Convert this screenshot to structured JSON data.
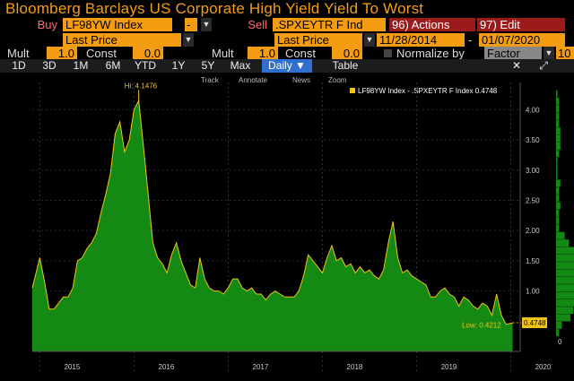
{
  "title": "Bloomberg Barclays US Corporate High Yield Yield To Worst",
  "row1": {
    "buy_label": "Buy",
    "buy_ticker": "LF98YW Index",
    "dash": "-",
    "sell_label": "Sell",
    "sell_ticker": ".SPXEYTR F Ind",
    "actions": "96) Actions",
    "edit": "97) Edit"
  },
  "row2": {
    "left_price": "Last Price",
    "right_price": "Last Price",
    "date_from": "11/28/2014",
    "date_sep": "-",
    "date_to": "01/07/2020"
  },
  "row3": {
    "mult_label": "Mult",
    "mult_value": "1.0",
    "const_label": "Const",
    "const_value": "0.0",
    "mult2_label": "Mult",
    "mult2_value": "1.0",
    "const2_label": "Const",
    "const2_value": "0.0",
    "normalize_label": "Normalize by",
    "factor_label": "Factor",
    "factor_value": "10"
  },
  "tabs": [
    "1D",
    "3D",
    "1M",
    "6M",
    "YTD",
    "1Y",
    "5Y",
    "Max",
    "Daily ▼",
    "Table"
  ],
  "toolbar": {
    "track": "Track",
    "annotate": "Annotate",
    "news": "News",
    "zoom": "Zoom"
  },
  "legend": "LF98YW Index - .SPXEYTR F Index 0.4748",
  "annotations": {
    "hi": "Hi: 4.1476",
    "low": "Low: 0.4212",
    "last": "0.4748"
  },
  "colors": {
    "area": "#148a14",
    "line": "#f0c419",
    "accent": "#f39c12"
  },
  "chart_data": {
    "type": "area",
    "series": [
      {
        "name": "LF98YW Index - .SPXEYTR F Index",
        "x": [
          2014.92,
          2015.0,
          2015.05,
          2015.1,
          2015.15,
          2015.2,
          2015.25,
          2015.3,
          2015.35,
          2015.4,
          2015.45,
          2015.5,
          2015.55,
          2015.6,
          2015.65,
          2015.7,
          2015.75,
          2015.8,
          2015.85,
          2015.9,
          2015.95,
          2016.0,
          2016.05,
          2016.1,
          2016.15,
          2016.2,
          2016.25,
          2016.3,
          2016.35,
          2016.4,
          2016.45,
          2016.5,
          2016.55,
          2016.6,
          2016.65,
          2016.7,
          2016.75,
          2016.8,
          2016.85,
          2016.9,
          2016.95,
          2017.0,
          2017.05,
          2017.1,
          2017.15,
          2017.2,
          2017.25,
          2017.3,
          2017.35,
          2017.4,
          2017.45,
          2017.5,
          2017.55,
          2017.6,
          2017.65,
          2017.7,
          2017.75,
          2017.8,
          2017.85,
          2017.9,
          2017.95,
          2018.0,
          2018.05,
          2018.1,
          2018.15,
          2018.2,
          2018.25,
          2018.3,
          2018.35,
          2018.4,
          2018.45,
          2018.5,
          2018.55,
          2018.6,
          2018.65,
          2018.7,
          2018.75,
          2018.8,
          2018.85,
          2018.9,
          2018.95,
          2019.0,
          2019.05,
          2019.1,
          2019.15,
          2019.2,
          2019.25,
          2019.3,
          2019.35,
          2019.4,
          2019.45,
          2019.5,
          2019.55,
          2019.6,
          2019.65,
          2019.7,
          2019.75,
          2019.8,
          2019.85,
          2019.9,
          2019.95,
          2020.02
        ],
        "y": [
          1.05,
          1.55,
          1.15,
          0.7,
          0.7,
          0.8,
          0.9,
          0.9,
          1.05,
          1.5,
          1.55,
          1.7,
          1.8,
          1.95,
          2.3,
          2.6,
          2.95,
          3.6,
          3.8,
          3.3,
          3.5,
          4.0,
          4.15,
          3.4,
          2.6,
          1.8,
          1.55,
          1.45,
          1.3,
          1.6,
          1.8,
          1.5,
          1.3,
          1.1,
          1.05,
          1.55,
          1.2,
          1.05,
          1.0,
          1.0,
          0.95,
          1.05,
          1.2,
          1.2,
          1.05,
          1.0,
          1.05,
          0.95,
          0.95,
          0.85,
          0.95,
          1.0,
          0.95,
          0.9,
          0.9,
          0.9,
          1.0,
          1.25,
          1.6,
          1.5,
          1.4,
          1.3,
          1.55,
          1.75,
          1.5,
          1.55,
          1.4,
          1.45,
          1.3,
          1.4,
          1.3,
          1.35,
          1.25,
          1.2,
          1.35,
          1.8,
          2.15,
          1.55,
          1.3,
          1.35,
          1.25,
          1.2,
          1.15,
          1.1,
          0.9,
          0.9,
          1.0,
          1.05,
          0.95,
          0.9,
          0.75,
          0.9,
          0.85,
          0.75,
          0.7,
          0.8,
          0.75,
          0.6,
          0.95,
          0.6,
          0.45,
          0.47
        ]
      }
    ],
    "xlabels": [
      "2015",
      "2016",
      "2017",
      "2018",
      "2019",
      "2020"
    ],
    "xticks": [
      2015.0,
      2016.0,
      2017.0,
      2018.0,
      2019.0,
      2020.0
    ],
    "yticks": [
      "4.00",
      "3.50",
      "3.00",
      "2.50",
      "2.00",
      "1.50",
      "1.00"
    ],
    "ytick_values": [
      4.0,
      3.5,
      3.0,
      2.5,
      2.0,
      1.5,
      1.0
    ],
    "ylim": [
      0.0,
      4.45
    ],
    "xlim": [
      2014.92,
      2020.1
    ],
    "hi": {
      "x": 2016.05,
      "y": 4.1476
    },
    "low": {
      "x": 2019.92,
      "y": 0.4212
    },
    "last": 0.4748,
    "side_hist_zero": "0"
  }
}
